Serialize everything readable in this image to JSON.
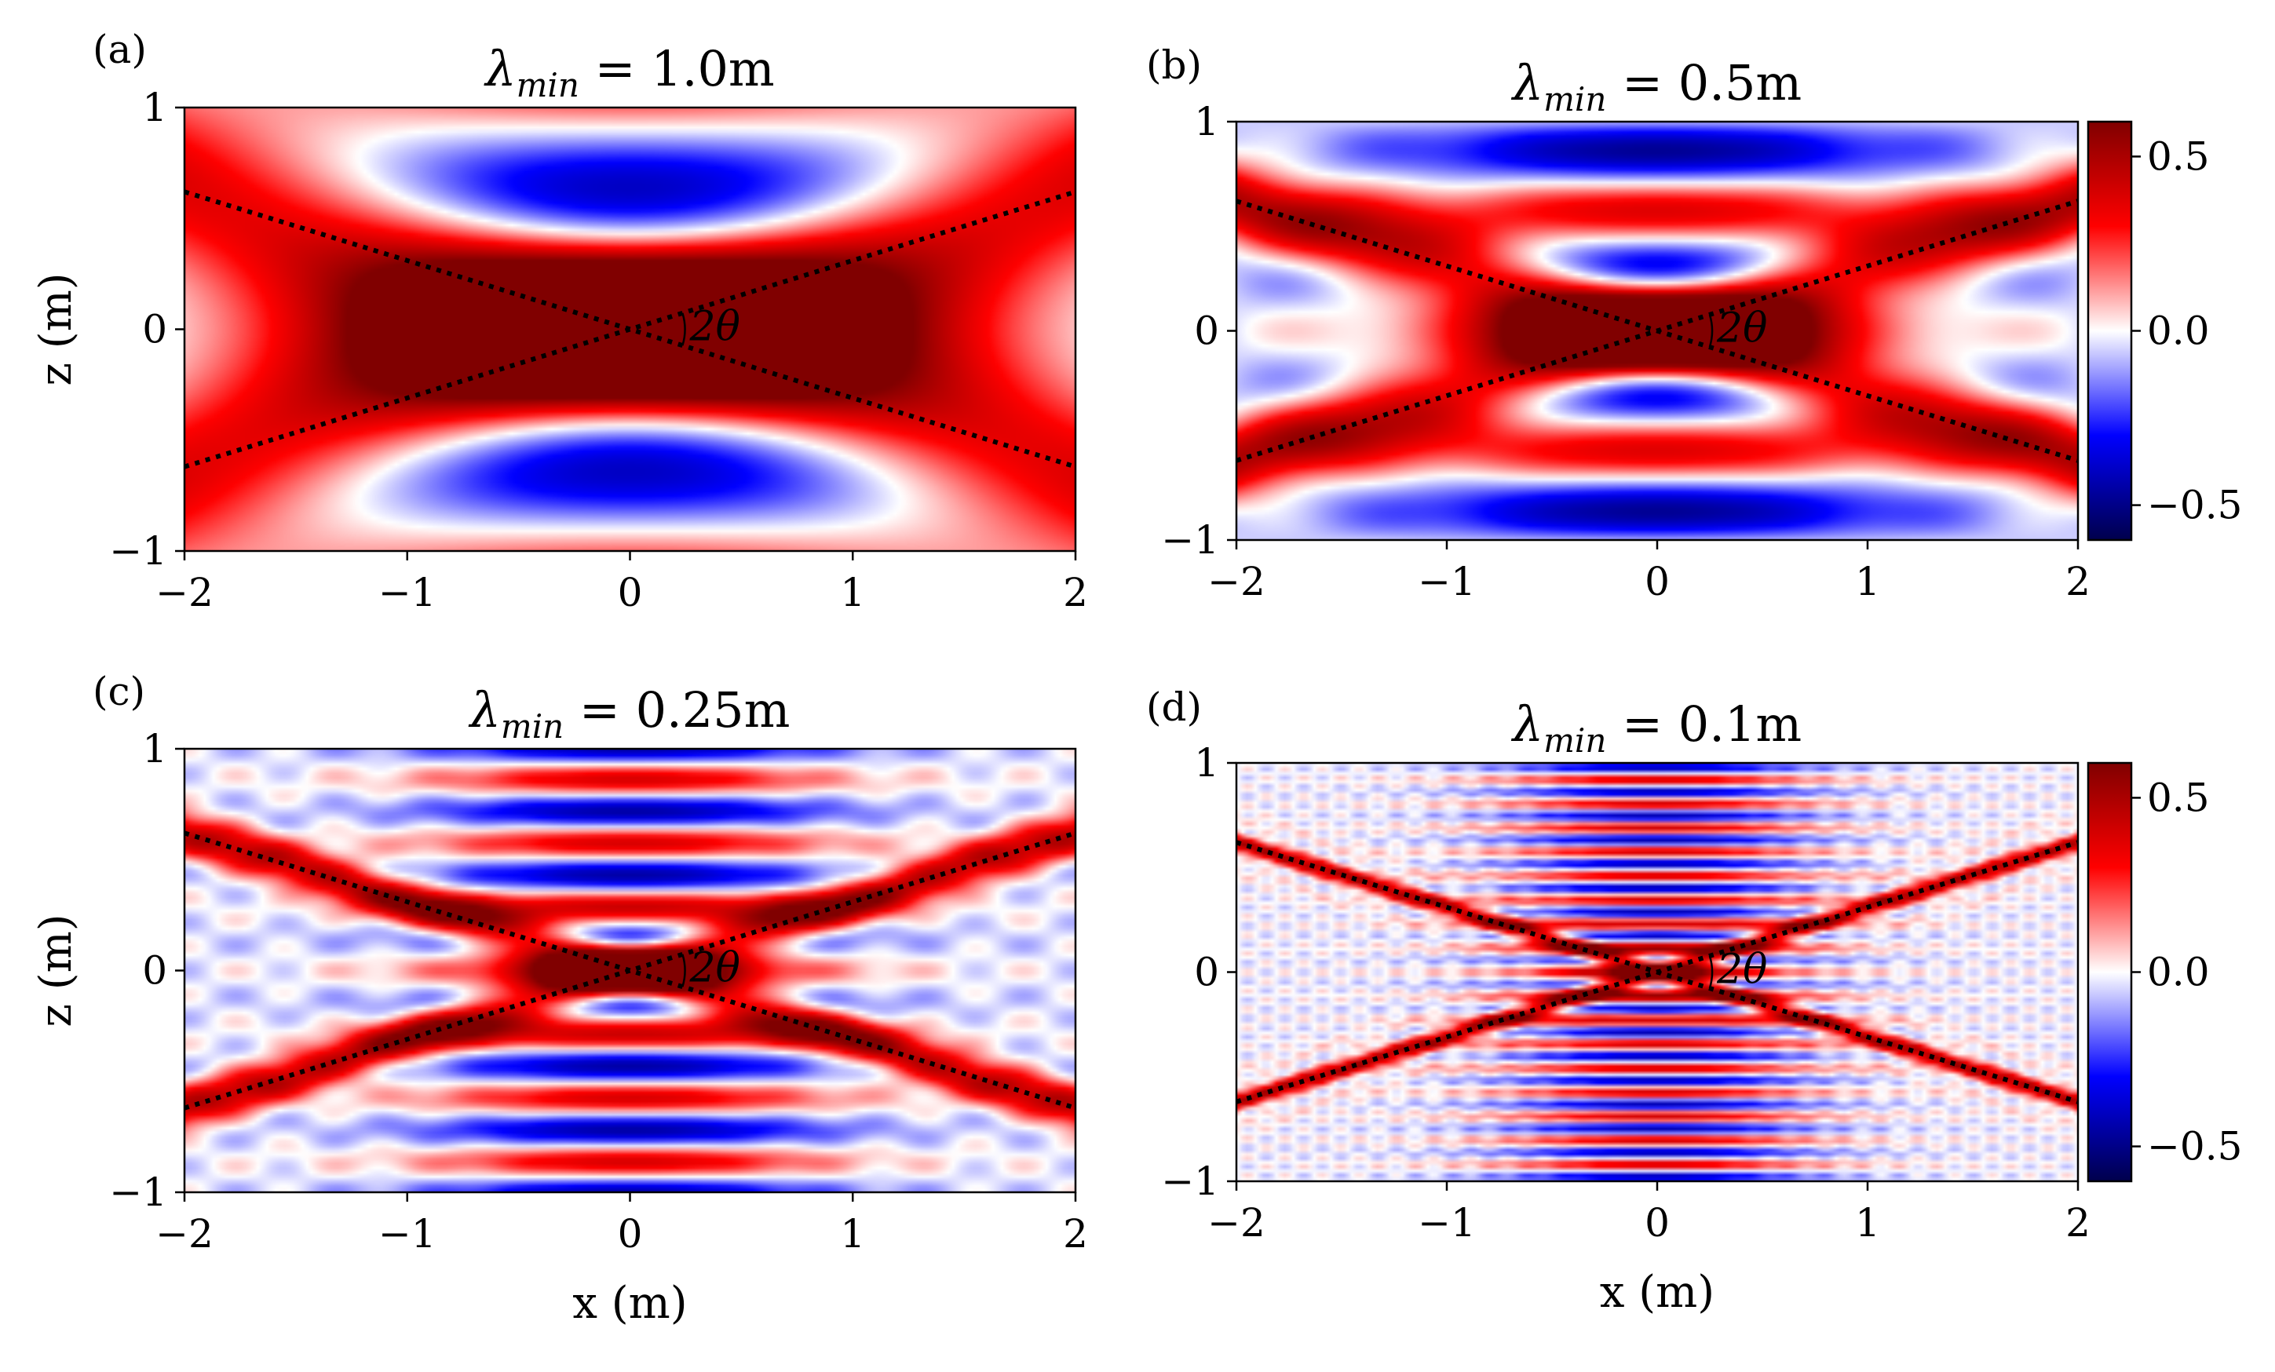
{
  "chart_data": [
    {
      "type": "heatmap",
      "panel_label": "(a)",
      "title": {
        "prefix": "λ",
        "subscript": "min",
        "suffix": " = 1.0m"
      },
      "lambda_min": 1.0,
      "xlabel": "x (m)",
      "ylabel": "z (m)",
      "xlim": [
        -2,
        2
      ],
      "ylim": [
        -1,
        1
      ],
      "xticks": [
        -2,
        -1,
        0,
        1,
        2
      ],
      "xtick_labels": [
        "−2",
        "−1",
        "0",
        "1",
        "2"
      ],
      "yticks": [
        -1,
        0,
        1
      ],
      "ytick_labels": [
        "−1",
        "0",
        "1"
      ],
      "show_xlabel": false,
      "show_ylabel": true,
      "colorbar": false,
      "angle_label": "2θ",
      "dotted_line_slope": 0.31
    },
    {
      "type": "heatmap",
      "panel_label": "(b)",
      "title": {
        "prefix": "λ",
        "subscript": "min",
        "suffix": " = 0.5m"
      },
      "lambda_min": 0.5,
      "xlabel": "x (m)",
      "ylabel": "z (m)",
      "xlim": [
        -2,
        2
      ],
      "ylim": [
        -1,
        1
      ],
      "xticks": [
        -2,
        -1,
        0,
        1,
        2
      ],
      "xtick_labels": [
        "−2",
        "−1",
        "0",
        "1",
        "2"
      ],
      "yticks": [
        -1,
        0,
        1
      ],
      "ytick_labels": [
        "−1",
        "0",
        "1"
      ],
      "show_xlabel": false,
      "show_ylabel": false,
      "colorbar": true,
      "angle_label": "2θ",
      "dotted_line_slope": 0.31
    },
    {
      "type": "heatmap",
      "panel_label": "(c)",
      "title": {
        "prefix": "λ",
        "subscript": "min",
        "suffix": " = 0.25m"
      },
      "lambda_min": 0.25,
      "xlabel": "x (m)",
      "ylabel": "z (m)",
      "xlim": [
        -2,
        2
      ],
      "ylim": [
        -1,
        1
      ],
      "xticks": [
        -2,
        -1,
        0,
        1,
        2
      ],
      "xtick_labels": [
        "−2",
        "−1",
        "0",
        "1",
        "2"
      ],
      "yticks": [
        -1,
        0,
        1
      ],
      "ytick_labels": [
        "−1",
        "0",
        "1"
      ],
      "show_xlabel": true,
      "show_ylabel": true,
      "colorbar": false,
      "angle_label": "2θ",
      "dotted_line_slope": 0.31
    },
    {
      "type": "heatmap",
      "panel_label": "(d)",
      "title": {
        "prefix": "λ",
        "subscript": "min",
        "suffix": " = 0.1m"
      },
      "lambda_min": 0.1,
      "xlabel": "x (m)",
      "ylabel": "z (m)",
      "xlim": [
        -2,
        2
      ],
      "ylim": [
        -1,
        1
      ],
      "xticks": [
        -2,
        -1,
        0,
        1,
        2
      ],
      "xtick_labels": [
        "−2",
        "−1",
        "0",
        "1",
        "2"
      ],
      "yticks": [
        -1,
        0,
        1
      ],
      "ytick_labels": [
        "−1",
        "0",
        "1"
      ],
      "show_xlabel": true,
      "show_ylabel": false,
      "colorbar": true,
      "angle_label": "2θ",
      "dotted_line_slope": 0.31
    }
  ],
  "colorbar": {
    "colormap": "seismic",
    "vmin": -0.6,
    "vmax": 0.6,
    "ticks": [
      -0.5,
      0.0,
      0.5
    ],
    "tick_labels": [
      "−0.5",
      "0.0",
      "0.5"
    ]
  },
  "colors": {
    "dark_blue": "#00004c",
    "blue": "#0000ff",
    "white": "#ffffff",
    "red": "#ff0000",
    "dark_red": "#800000",
    "line": "#000000"
  }
}
